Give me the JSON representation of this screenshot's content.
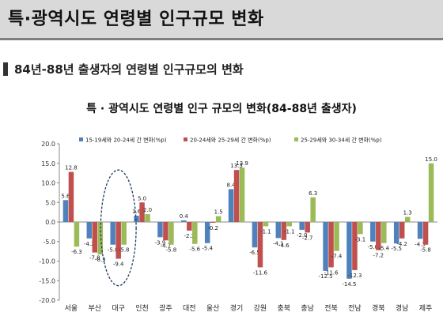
{
  "page": {
    "title": "특·광역시도 연령별 인구규모 변화",
    "section_heading": "84년-88년 출생자의 연령별 인구규모의 변화"
  },
  "chart_data": {
    "type": "bar",
    "title": "특 · 광역시도 연령별 인구 규모의 변화(84-88년 출생자)",
    "categories": [
      "서울",
      "부산",
      "대구",
      "인천",
      "광주",
      "대전",
      "울산",
      "경기",
      "강원",
      "충북",
      "충남",
      "전북",
      "전남",
      "경북",
      "경남",
      "제주"
    ],
    "series": [
      {
        "name": "15-19세와 20-24세 간 변화(%p)",
        "color": "#4f81bd",
        "values": [
          5.6,
          -4.2,
          -5.8,
          1.6,
          -3.9,
          0.4,
          -5.4,
          8.4,
          -6.5,
          -4.1,
          -2.0,
          -12.5,
          -14.5,
          -5.0,
          -5.5,
          -4.3
        ]
      },
      {
        "name": "20-24세와 25-29세 간 변화(%p)",
        "color": "#c0504d",
        "values": [
          12.8,
          -7.8,
          -9.4,
          5.0,
          -4.7,
          -2.2,
          -0.2,
          13.3,
          -11.6,
          -4.6,
          -2.7,
          -11.6,
          -12.3,
          -7.2,
          -4.2,
          -5.8
        ]
      },
      {
        "name": "25-29세와 30-34세 간 변화(%p)",
        "color": "#9bbb59",
        "values": [
          -6.3,
          -8.3,
          -5.8,
          2.0,
          -5.8,
          -5.6,
          1.5,
          13.9,
          -1.1,
          -1.1,
          6.3,
          -7.4,
          -3.1,
          -5.4,
          1.3,
          15.0
        ]
      }
    ],
    "ylim": [
      -20,
      20
    ],
    "yticks": [
      -20.0,
      -15.0,
      -10.0,
      -5.0,
      0.0,
      5.0,
      10.0,
      15.0,
      20.0
    ],
    "legend_position": "top",
    "grid": false,
    "annotation": "dashed ellipse around 대구"
  }
}
